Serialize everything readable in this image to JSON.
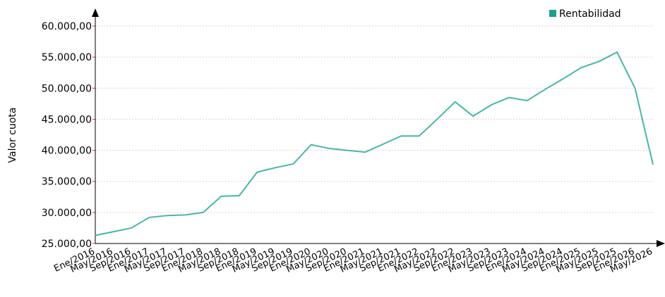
{
  "chart_data": {
    "type": "line",
    "y_label": "Valor cuota",
    "categories": [
      "Ene/2016",
      "May/2016",
      "Sep/2016",
      "Ene/2017",
      "May/2017",
      "Sep/2017",
      "Ene/2018",
      "May/2018",
      "Sep/2018",
      "Ene/2019",
      "May/2019",
      "Sep/2019",
      "Ene/2020",
      "May/2020",
      "Sep/2020",
      "Ene/2021",
      "May/2021",
      "Sep/2021",
      "Ene/2022",
      "May/2022",
      "Sep/2022",
      "Ene/2023",
      "May/2023",
      "Sep/2023",
      "Ene/2024",
      "May/2024",
      "Sep/2024",
      "Ene/2025",
      "May/2025",
      "Sep/2025",
      "Ene/2026",
      "May/2026"
    ],
    "series": [
      {
        "name": "Rentabilidad",
        "color": "#45b8a6",
        "legend_color": "#1f9e8c",
        "values": [
          26300,
          26900,
          27500,
          29200,
          29500,
          29600,
          30000,
          32600,
          32700,
          36500,
          37200,
          37800,
          40900,
          40300,
          40000,
          39700,
          41000,
          42300,
          42300,
          45000,
          47800,
          45500,
          47300,
          48500,
          48000,
          49800,
          51500,
          53300,
          54300,
          55800,
          50000,
          37700
        ]
      }
    ],
    "ylim": [
      25000,
      60000
    ],
    "yticks": [
      {
        "value": 25000,
        "label": "25.000,00"
      },
      {
        "value": 30000,
        "label": "30.000,00"
      },
      {
        "value": 35000,
        "label": "35.000,00"
      },
      {
        "value": 40000,
        "label": "40.000,00"
      },
      {
        "value": 45000,
        "label": "45.000,00"
      },
      {
        "value": 50000,
        "label": "50.000,00"
      },
      {
        "value": 55000,
        "label": "55.000,00"
      },
      {
        "value": 60000,
        "label": "60.000,00"
      }
    ],
    "grid": true,
    "grid_color": "#f2c9cf",
    "legend": "top-right"
  }
}
